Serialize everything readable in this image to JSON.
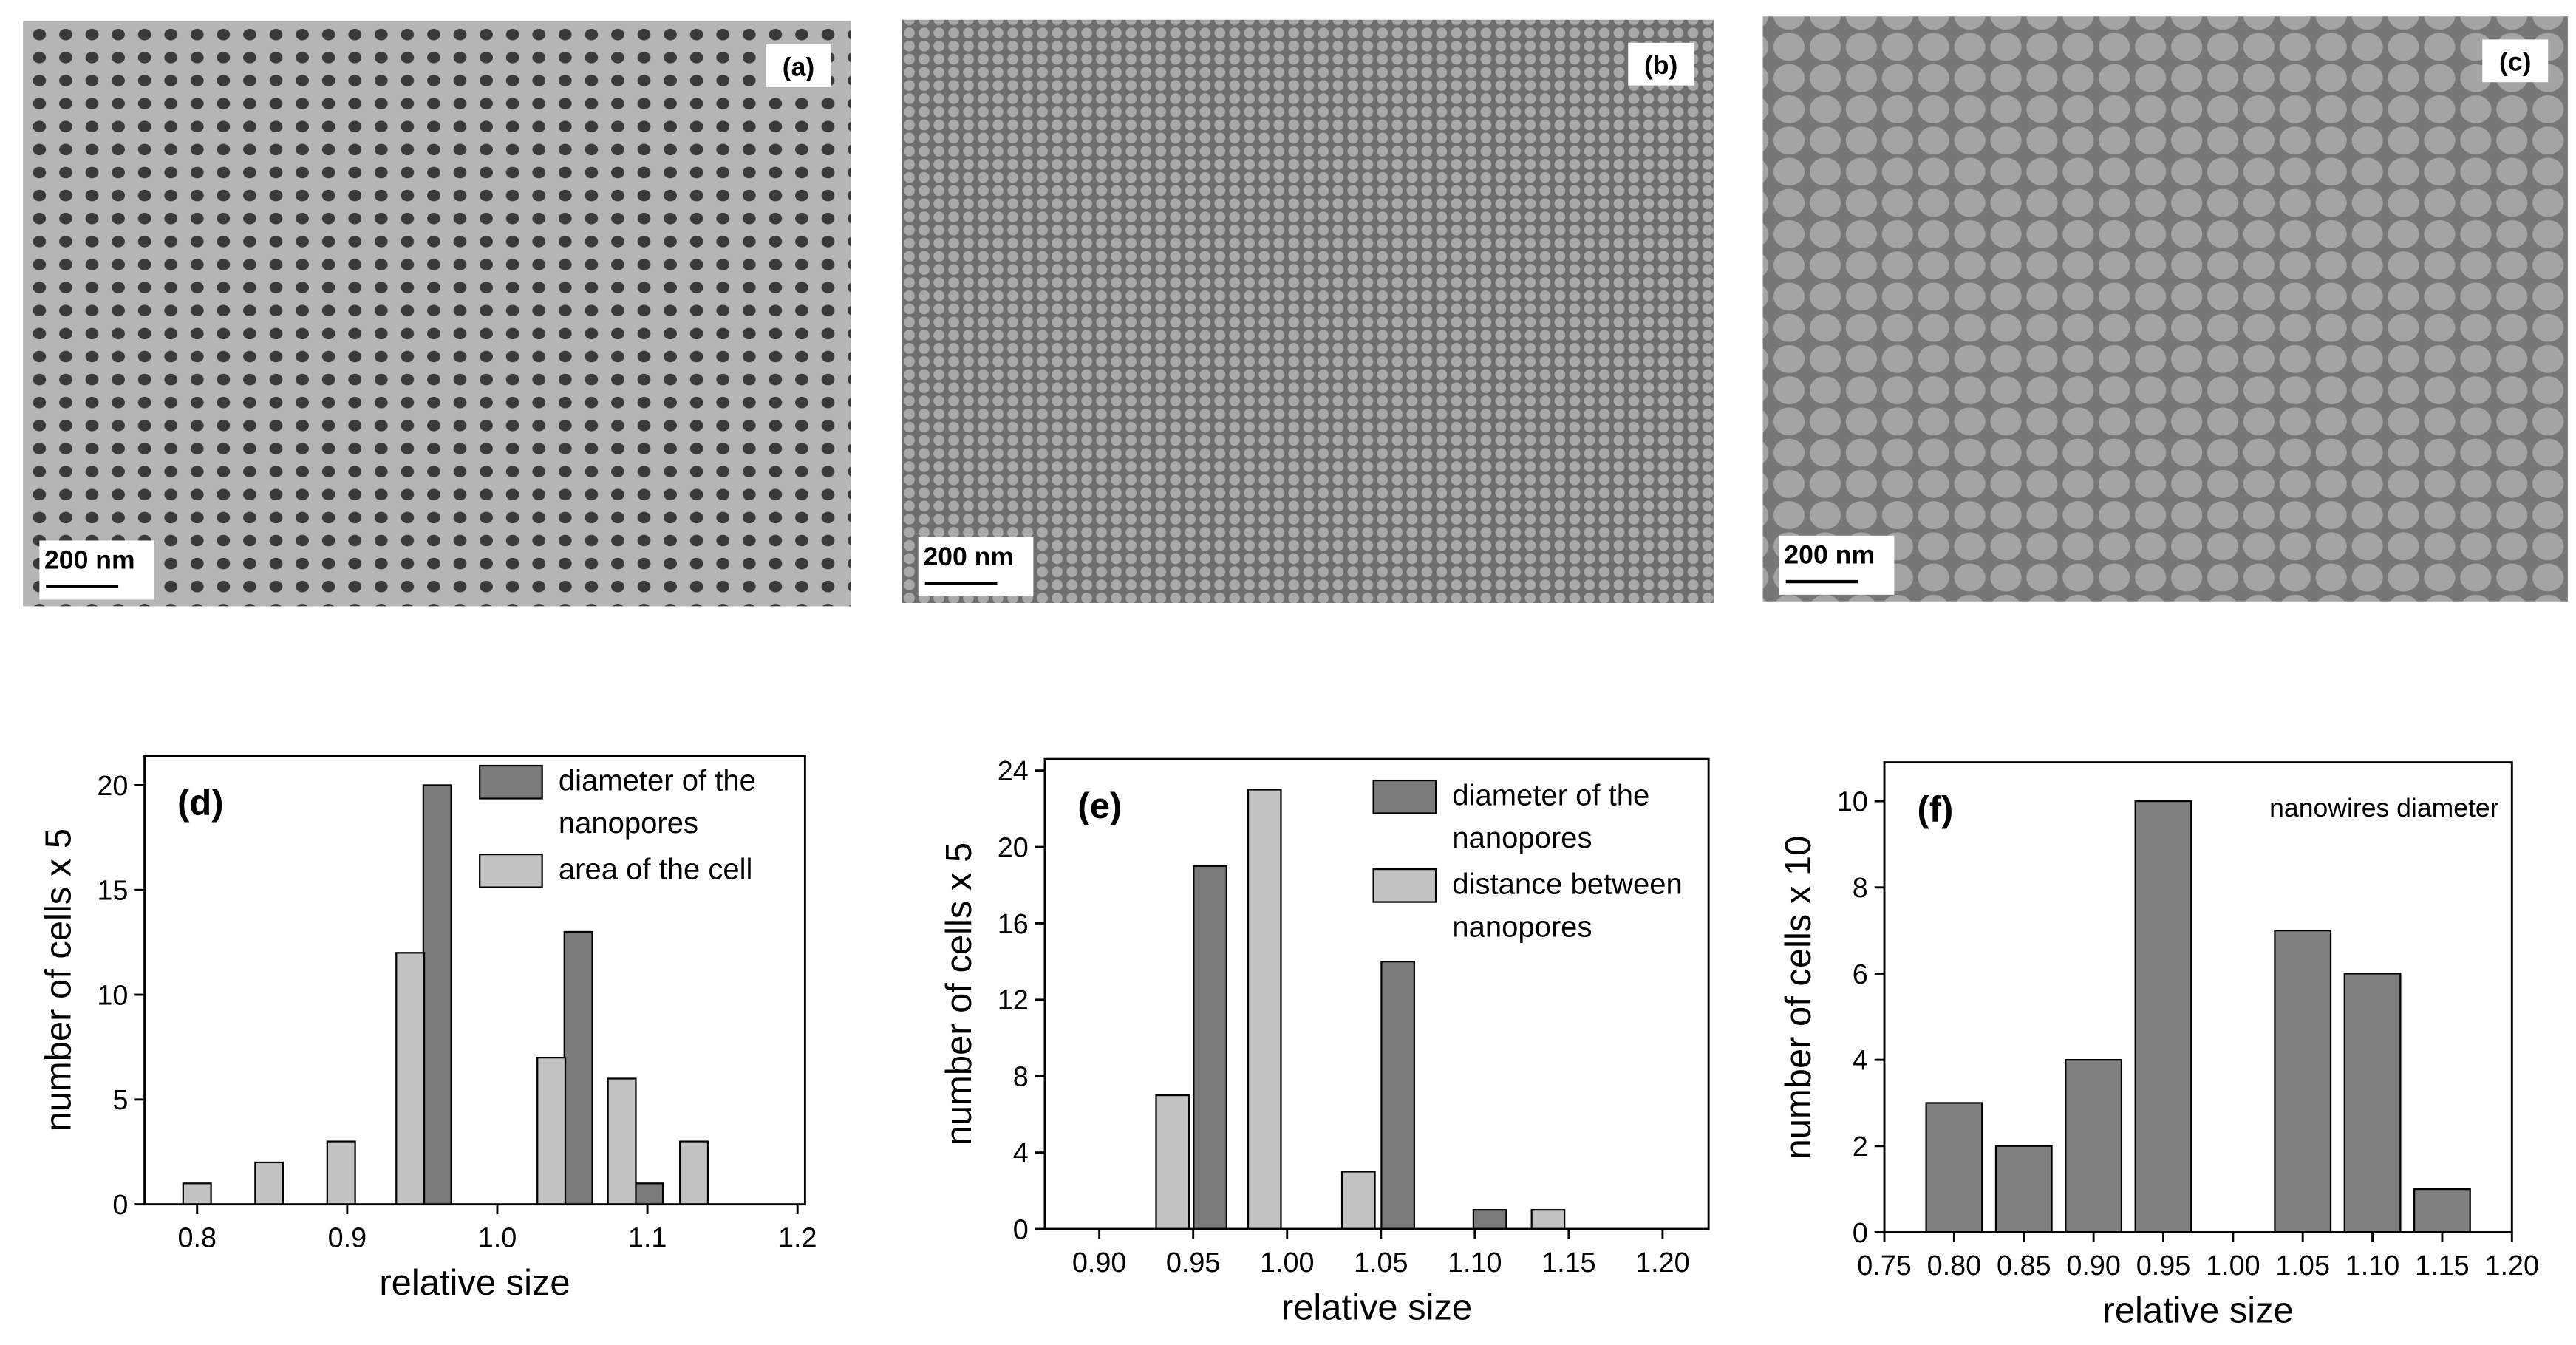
{
  "images": [
    {
      "label": "(a)",
      "scale_bar": "200 nm"
    },
    {
      "label": "(b)",
      "scale_bar": "200 nm"
    },
    {
      "label": "(c)",
      "scale_bar": "200 nm"
    }
  ],
  "chart_data": [
    {
      "type": "bar",
      "panel_label": "(d)",
      "xlabel": "relative size",
      "ylabel": "number of cells x 5",
      "xlim": [
        0.765,
        1.205
      ],
      "xticks": [
        0.8,
        0.9,
        {
          "value": 1,
          "label": "1.0"
        },
        1.1,
        1.2
      ],
      "ylim": [
        0,
        21.4
      ],
      "yticks": [
        0,
        5,
        10,
        15,
        20
      ],
      "series": [
        {
          "name": "diameter of the nanopores",
          "color": "#7a7a7a",
          "x": [
            0.96,
            1.054,
            1.101
          ],
          "values": [
            20,
            13,
            1
          ]
        },
        {
          "name": "area of the cell",
          "color": "#c2c2c2",
          "x": [
            0.8,
            0.848,
            0.896,
            0.942,
            1.036,
            1.083,
            1.131
          ],
          "values": [
            1,
            2,
            3,
            12,
            7,
            6,
            3
          ]
        }
      ]
    },
    {
      "type": "bar",
      "panel_label": "(e)",
      "xlabel": "relative size",
      "ylabel": "number of cells x 5",
      "xlim": [
        0.871,
        1.2245
      ],
      "xticks": [
        {
          "value": 0.9,
          "label": "0.90"
        },
        0.95,
        {
          "value": 1,
          "label": "1.00"
        },
        1.05,
        {
          "value": 1.1,
          "label": "1.10"
        },
        1.15,
        {
          "value": 1.2,
          "label": "1.20"
        }
      ],
      "ylim": [
        0,
        24.6
      ],
      "yticks": [
        0,
        4,
        8,
        12,
        16,
        20,
        24
      ],
      "series": [
        {
          "name": "diameter of the nanopores",
          "color": "#7a7a7a",
          "x": [
            0.959,
            1.059,
            1.108
          ],
          "values": [
            19,
            14,
            1
          ]
        },
        {
          "name": "distance between nanopores",
          "color": "#c2c2c2",
          "x": [
            0.939,
            0.988,
            1.038,
            1.139
          ],
          "values": [
            7,
            23,
            3,
            1
          ]
        }
      ]
    },
    {
      "type": "bar",
      "panel_label": "(f)",
      "xlabel": "relative size",
      "ylabel": "number of cells x 10",
      "annotation": "nanowires diameter",
      "xlim": [
        0.75,
        1.2
      ],
      "xticks": [
        0.75,
        {
          "value": 0.8,
          "label": "0.80"
        },
        0.85,
        {
          "value": 0.9,
          "label": "0.90"
        },
        0.95,
        {
          "value": 1,
          "label": "1.00"
        },
        1.05,
        {
          "value": 1.1,
          "label": "1.10"
        },
        1.15,
        {
          "value": 1.2,
          "label": "1.20"
        }
      ],
      "ylim": [
        0,
        10.9
      ],
      "yticks": [
        0,
        2,
        4,
        6,
        8,
        10
      ],
      "series": [
        {
          "color": "#808080",
          "x": [
            0.8,
            0.85,
            0.9,
            0.95,
            1.05,
            1.1,
            1.15
          ],
          "values": [
            3,
            2,
            4,
            10,
            7,
            6,
            1
          ]
        }
      ]
    }
  ]
}
